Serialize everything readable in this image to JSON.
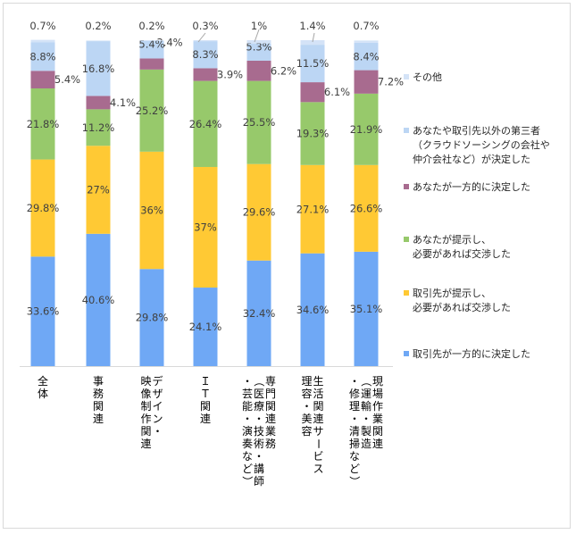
{
  "chart_data": {
    "type": "bar",
    "stacked": true,
    "percent": true,
    "categories": [
      [
        "全体"
      ],
      [
        "事務関連"
      ],
      [
        "デザイン・",
        "映像制作関連"
      ],
      [
        "ＩＴ関連"
      ],
      [
        "専門関連業務",
        "（医療・技術・講師",
        "・芸能・演奏など）"
      ],
      [
        "生活関連サービス",
        "理容・美容"
      ],
      [
        "現場作業関連",
        "（運輸・製造",
        "・修理・清掃など）"
      ]
    ],
    "series": [
      {
        "name": "取引先が一方的に決定した",
        "color": "#6fa8f5",
        "values": [
          33.6,
          40.6,
          29.8,
          24.1,
          32.4,
          34.6,
          35.1
        ],
        "labels": [
          "33.6%",
          "40.6%",
          "29.8%",
          "24.1%",
          "32.4%",
          "34.6%",
          "35.1%"
        ]
      },
      {
        "name": "取引先が提示し、\n必要があれば交渉した",
        "color": "#ffc934",
        "values": [
          29.8,
          27,
          36,
          37,
          29.6,
          27.1,
          26.6
        ],
        "labels": [
          "29.8%",
          "27%",
          "36%",
          "37%",
          "29.6%",
          "27.1%",
          "26.6%"
        ]
      },
      {
        "name": "あなたが提示し、\n必要があれば交渉した",
        "color": "#97c96b",
        "values": [
          21.8,
          11.2,
          25.2,
          26.4,
          25.5,
          19.3,
          21.9
        ],
        "labels": [
          "21.8%",
          "11.2%",
          "25.2%",
          "26.4%",
          "25.5%",
          "19.3%",
          "21.9%"
        ]
      },
      {
        "name": "あなたが一方的に決定した",
        "color": "#a86b8f",
        "values": [
          5.4,
          4.1,
          3.4,
          3.9,
          6.2,
          6.1,
          7.2
        ],
        "labels": [
          "5.4%",
          "4.1%",
          "3.4%",
          "3.9%",
          "6.2%",
          "6.1%",
          "7.2%"
        ]
      },
      {
        "name": "あなたや取引先以外の第三者\n（クラウドソーシングの会社や\n仲介会社など）が決定した",
        "color": "#bcd6f4",
        "values": [
          8.8,
          16.8,
          5.4,
          8.3,
          5.3,
          11.5,
          8.4
        ],
        "labels": [
          "8.8%",
          "16.8%",
          "5.4%",
          "8.3%",
          "5.3%",
          "11.5%",
          "8.4%"
        ]
      },
      {
        "name": "その他",
        "color": "#d4e3f7",
        "values": [
          0.7,
          0.2,
          0.2,
          0.3,
          1,
          1.4,
          0.7
        ],
        "labels": [
          "0.7%",
          "0.2%",
          "0.2%",
          "0.3%",
          "1%",
          "1.4%",
          "0.7%"
        ]
      }
    ],
    "ylim": [
      0,
      100
    ],
    "grid": false,
    "legend": "right"
  }
}
